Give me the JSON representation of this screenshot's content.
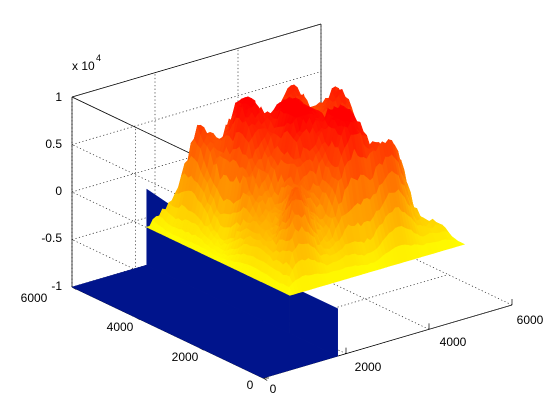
{
  "chart_data": {
    "type": "surface",
    "title": "",
    "xlabel": "",
    "ylabel": "",
    "zlabel": "",
    "z_multiplier": "x 10",
    "z_exponent": "4",
    "xlim": [
      0,
      6000
    ],
    "ylim": [
      0,
      6000
    ],
    "zlim": [
      -10000,
      10000
    ],
    "x_ticks": [
      "0",
      "2000",
      "4000",
      "6000"
    ],
    "y_ticks": [
      "0",
      "2000",
      "4000",
      "6000"
    ],
    "z_ticks": [
      "-1",
      "-0.5",
      "0",
      "0.5",
      "1"
    ],
    "grid": true,
    "colormap": "autumn",
    "floor_color": "#00148c",
    "floor_value": -10000,
    "terrain_region": {
      "x_range": [
        1800,
        6000
      ],
      "y_range": [
        1500,
        6000
      ]
    },
    "terrain_z_range": [
      -6000,
      8000
    ]
  }
}
